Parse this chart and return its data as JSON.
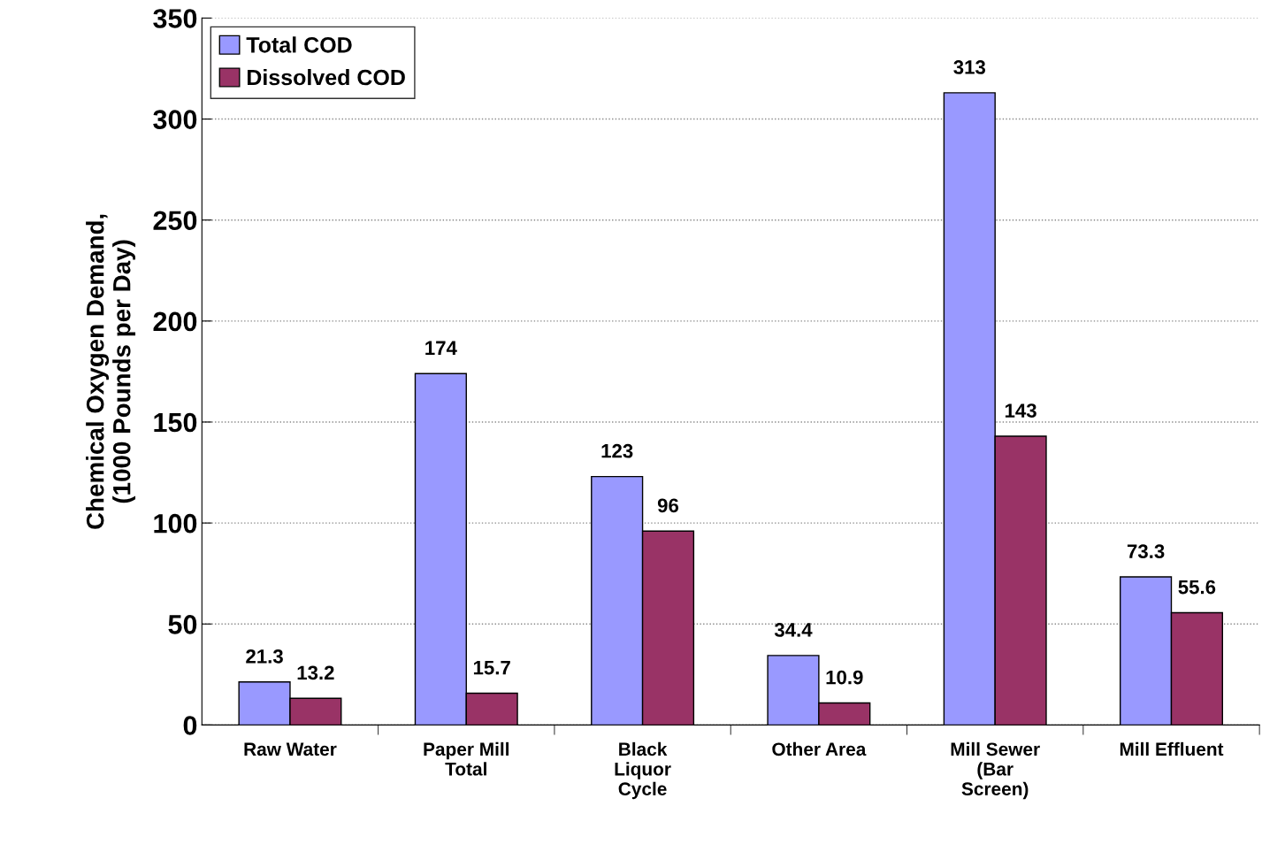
{
  "chart_data": {
    "type": "bar",
    "ylabel": "Chemical Oxygen Demand,\n(1000 Pounds per Day)",
    "categories": [
      "Raw Water",
      "Paper Mill\nTotal",
      "Black\nLiquor\nCycle",
      "Other Area",
      "Mill Sewer\n(Bar\nScreen)",
      "Mill Effluent"
    ],
    "series": [
      {
        "name": "Total COD",
        "color": "#9999ff",
        "values": [
          21.3,
          174,
          123,
          34.4,
          313,
          73.3
        ]
      },
      {
        "name": "Dissolved COD",
        "color": "#993366",
        "values": [
          13.2,
          15.7,
          96,
          10.9,
          143,
          55.6
        ]
      }
    ],
    "ylim": [
      0,
      350
    ],
    "yticks": [
      0,
      50,
      100,
      150,
      200,
      250,
      300,
      350
    ],
    "grid": "y",
    "legend": "top left",
    "data_labels": true
  }
}
